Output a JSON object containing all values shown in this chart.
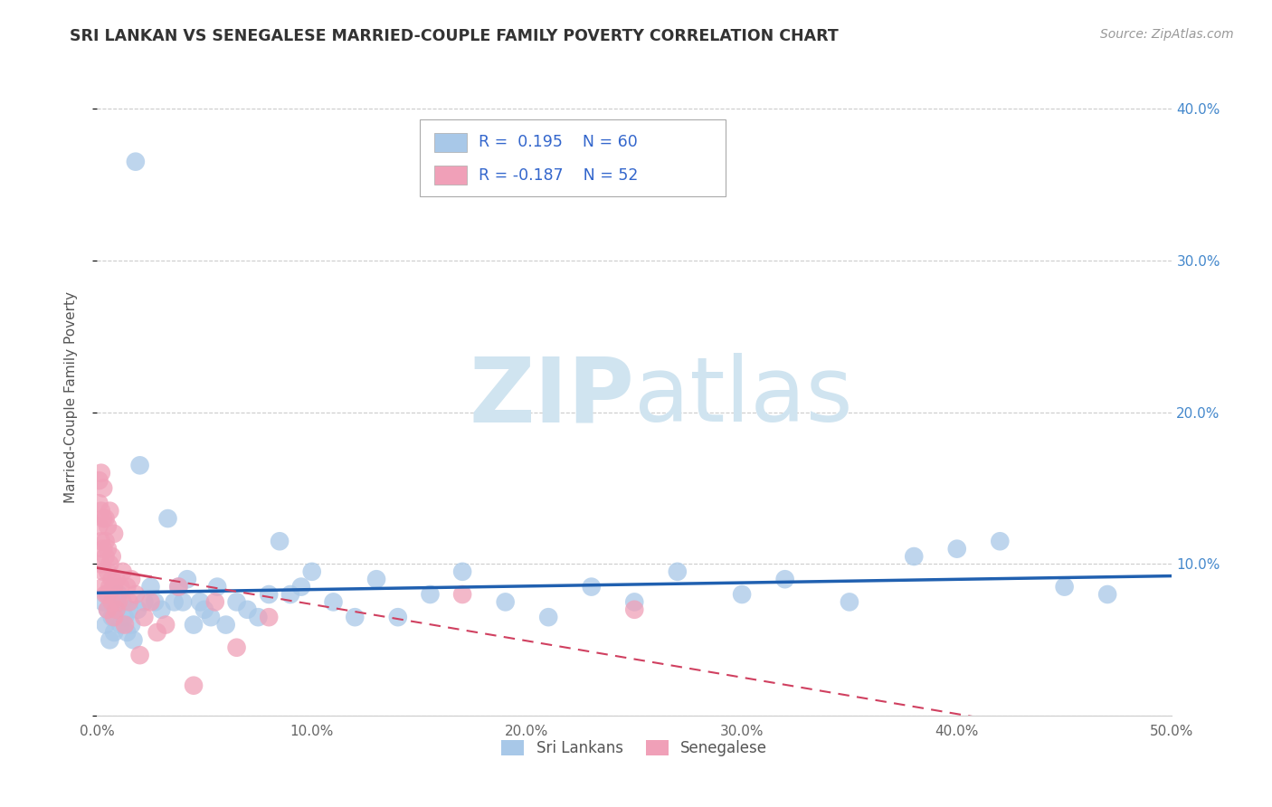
{
  "title": "SRI LANKAN VS SENEGALESE MARRIED-COUPLE FAMILY POVERTY CORRELATION CHART",
  "source": "Source: ZipAtlas.com",
  "ylabel": "Married-Couple Family Poverty",
  "xlim": [
    0,
    0.5
  ],
  "ylim": [
    0,
    0.42
  ],
  "xticks": [
    0.0,
    0.1,
    0.2,
    0.3,
    0.4,
    0.5
  ],
  "yticks": [
    0.0,
    0.1,
    0.2,
    0.3,
    0.4
  ],
  "xticklabels": [
    "0.0%",
    "10.0%",
    "20.0%",
    "30.0%",
    "40.0%",
    "50.0%"
  ],
  "right_yticklabels": [
    "",
    "10.0%",
    "20.0%",
    "30.0%",
    "40.0%"
  ],
  "legend_r_blue": "R =  0.195",
  "legend_n_blue": "N = 60",
  "legend_r_pink": "R = -0.187",
  "legend_n_pink": "N = 52",
  "legend_label_blue": "Sri Lankans",
  "legend_label_pink": "Senegalese",
  "blue_color": "#A8C8E8",
  "pink_color": "#F0A0B8",
  "trend_blue_color": "#2060B0",
  "trend_pink_color": "#D04060",
  "legend_text_color": "#3366CC",
  "watermark_zip": "ZIP",
  "watermark_atlas": "atlas",
  "watermark_color": "#D0E4F0",
  "sri_lankans_x": [
    0.003,
    0.004,
    0.005,
    0.006,
    0.007,
    0.008,
    0.009,
    0.01,
    0.011,
    0.012,
    0.013,
    0.014,
    0.015,
    0.016,
    0.017,
    0.018,
    0.019,
    0.02,
    0.022,
    0.025,
    0.027,
    0.03,
    0.033,
    0.036,
    0.038,
    0.04,
    0.042,
    0.045,
    0.048,
    0.05,
    0.053,
    0.056,
    0.06,
    0.065,
    0.07,
    0.075,
    0.08,
    0.085,
    0.09,
    0.095,
    0.1,
    0.11,
    0.12,
    0.13,
    0.14,
    0.155,
    0.17,
    0.19,
    0.21,
    0.23,
    0.25,
    0.27,
    0.3,
    0.32,
    0.35,
    0.38,
    0.4,
    0.42,
    0.45,
    0.47
  ],
  "sri_lankans_y": [
    0.075,
    0.06,
    0.07,
    0.05,
    0.065,
    0.055,
    0.07,
    0.08,
    0.06,
    0.075,
    0.065,
    0.055,
    0.07,
    0.06,
    0.05,
    0.365,
    0.07,
    0.165,
    0.075,
    0.085,
    0.075,
    0.07,
    0.13,
    0.075,
    0.085,
    0.075,
    0.09,
    0.06,
    0.075,
    0.07,
    0.065,
    0.085,
    0.06,
    0.075,
    0.07,
    0.065,
    0.08,
    0.115,
    0.08,
    0.085,
    0.095,
    0.075,
    0.065,
    0.09,
    0.065,
    0.08,
    0.095,
    0.075,
    0.065,
    0.085,
    0.075,
    0.095,
    0.08,
    0.09,
    0.075,
    0.105,
    0.11,
    0.115,
    0.085,
    0.08
  ],
  "senegalese_x": [
    0.001,
    0.001,
    0.001,
    0.002,
    0.002,
    0.002,
    0.002,
    0.003,
    0.003,
    0.003,
    0.003,
    0.003,
    0.004,
    0.004,
    0.004,
    0.004,
    0.005,
    0.005,
    0.005,
    0.005,
    0.005,
    0.006,
    0.006,
    0.006,
    0.007,
    0.007,
    0.007,
    0.008,
    0.008,
    0.008,
    0.009,
    0.009,
    0.01,
    0.011,
    0.012,
    0.013,
    0.014,
    0.015,
    0.016,
    0.018,
    0.02,
    0.022,
    0.025,
    0.028,
    0.032,
    0.038,
    0.045,
    0.055,
    0.065,
    0.08,
    0.17,
    0.25
  ],
  "senegalese_y": [
    0.155,
    0.14,
    0.125,
    0.16,
    0.135,
    0.115,
    0.1,
    0.15,
    0.13,
    0.11,
    0.095,
    0.085,
    0.13,
    0.08,
    0.105,
    0.115,
    0.08,
    0.095,
    0.11,
    0.07,
    0.125,
    0.085,
    0.1,
    0.135,
    0.09,
    0.075,
    0.105,
    0.065,
    0.085,
    0.12,
    0.07,
    0.09,
    0.075,
    0.085,
    0.095,
    0.06,
    0.085,
    0.075,
    0.09,
    0.08,
    0.04,
    0.065,
    0.075,
    0.055,
    0.06,
    0.085,
    0.02,
    0.075,
    0.045,
    0.065,
    0.08,
    0.07
  ]
}
